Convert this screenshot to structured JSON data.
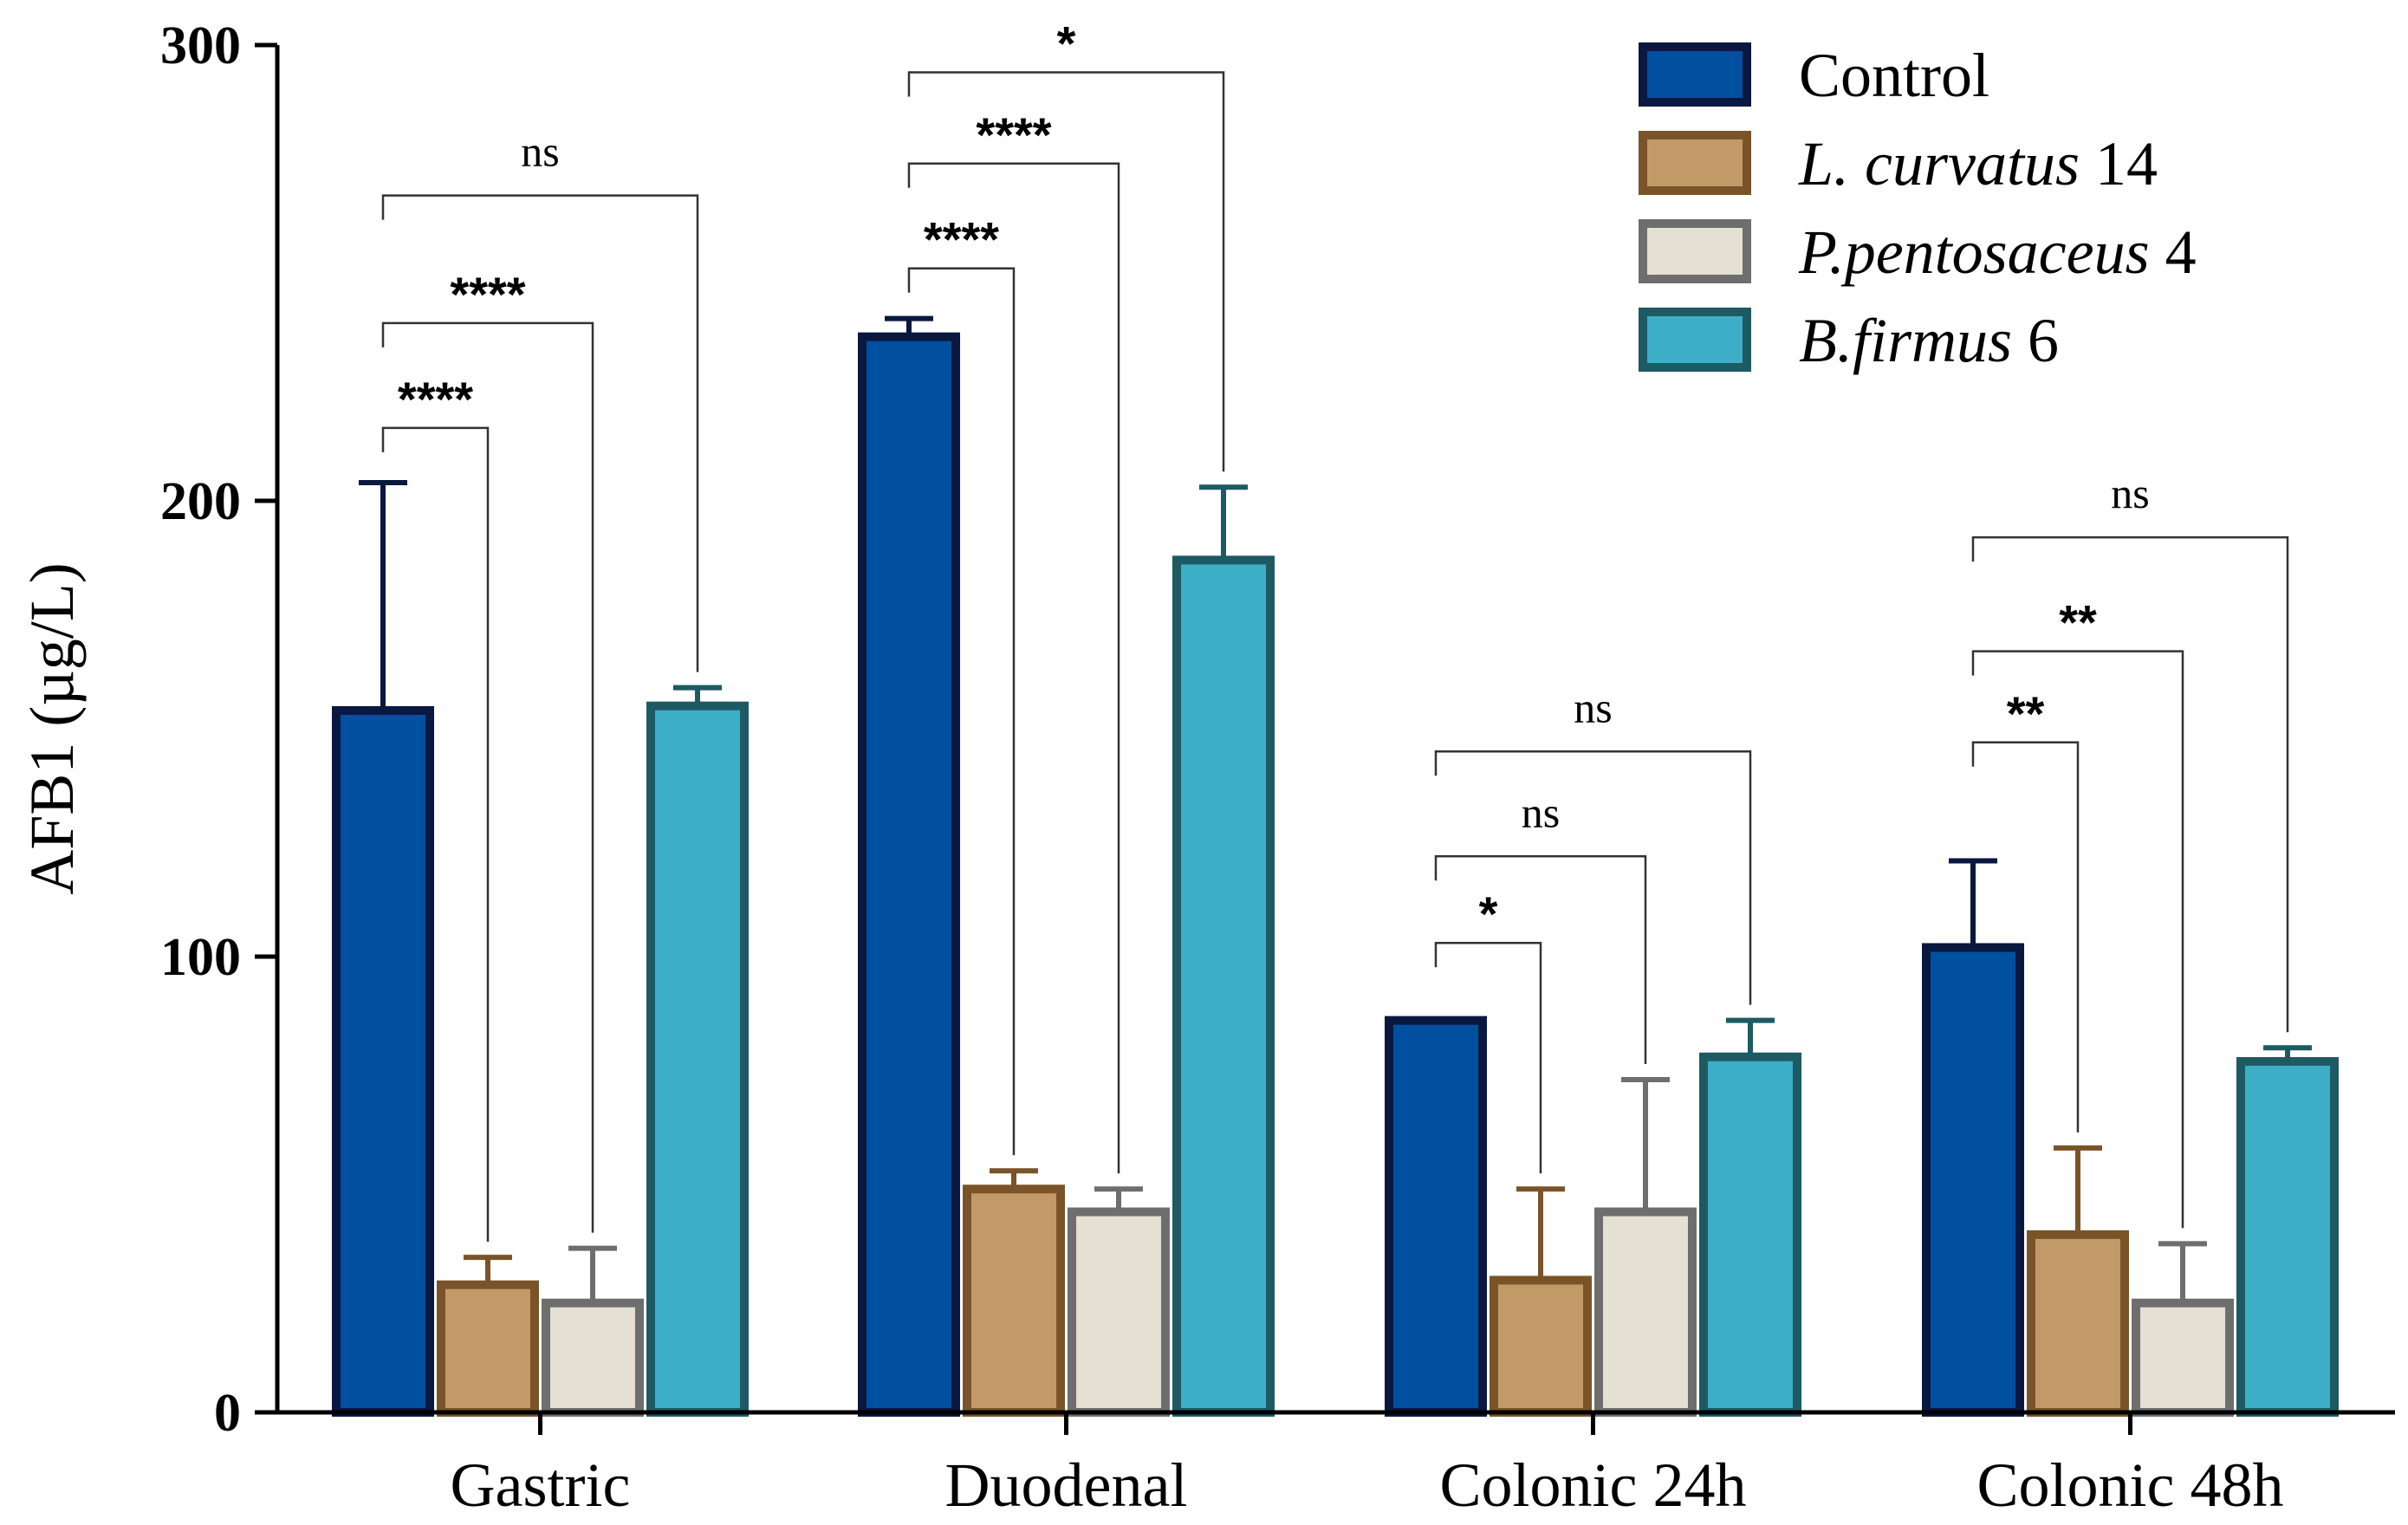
{
  "chart_data": {
    "type": "bar",
    "title": "",
    "xlabel": "",
    "ylabel": "AFB1 (µg/L)",
    "ylim": [
      0,
      300
    ],
    "yticks": [
      0,
      100,
      200,
      300
    ],
    "categories": [
      "Gastric",
      "Duodenal",
      "Colonic 24h",
      "Colonic 48h"
    ],
    "legend_position": "top-right",
    "series": [
      {
        "name": "Control",
        "label_main": "Control",
        "label_suffix": "",
        "italic": false,
        "fill": "#0050A0",
        "stroke": "#0A1840",
        "values": [
          154,
          236,
          86,
          102
        ],
        "errors": [
          50,
          4,
          0,
          19
        ]
      },
      {
        "name": "L. curvatus 14",
        "label_main": "L. curvatus",
        "label_suffix": " 14",
        "italic": true,
        "fill": "#C19A68",
        "stroke": "#7A5428",
        "values": [
          28,
          49,
          29,
          39
        ],
        "errors": [
          6,
          4,
          20,
          19
        ]
      },
      {
        "name": "P.pentosaceus 4",
        "label_main": "P.pentosaceus",
        "label_suffix": " 4",
        "italic": true,
        "fill": "#E5E0D4",
        "stroke": "#6E6E6E",
        "values": [
          24,
          44,
          44,
          24
        ],
        "errors": [
          12,
          5,
          29,
          13
        ]
      },
      {
        "name": "B.firmus 6",
        "label_main": "B.firmus",
        "label_suffix": " 6",
        "italic": true,
        "fill": "#3DAEC8",
        "stroke": "#1E5A64",
        "values": [
          155,
          187,
          78,
          77
        ],
        "errors": [
          4,
          16,
          8,
          3
        ]
      }
    ],
    "comparisons": [
      {
        "group": 0,
        "from": 0,
        "to": 1,
        "label": "****",
        "level": 216
      },
      {
        "group": 0,
        "from": 0,
        "to": 2,
        "label": "****",
        "level": 239
      },
      {
        "group": 0,
        "from": 0,
        "to": 3,
        "label": "ns",
        "level": 267
      },
      {
        "group": 1,
        "from": 0,
        "to": 1,
        "label": "****",
        "level": 251
      },
      {
        "group": 1,
        "from": 0,
        "to": 2,
        "label": "****",
        "level": 274
      },
      {
        "group": 1,
        "from": 0,
        "to": 3,
        "label": "*",
        "level": 294
      },
      {
        "group": 2,
        "from": 0,
        "to": 1,
        "label": "*",
        "level": 103
      },
      {
        "group": 2,
        "from": 0,
        "to": 2,
        "label": "ns",
        "level": 122
      },
      {
        "group": 2,
        "from": 0,
        "to": 3,
        "label": "ns",
        "level": 145
      },
      {
        "group": 3,
        "from": 0,
        "to": 1,
        "label": "**",
        "level": 147
      },
      {
        "group": 3,
        "from": 0,
        "to": 2,
        "label": "**",
        "level": 167
      },
      {
        "group": 3,
        "from": 0,
        "to": 3,
        "label": "ns",
        "level": 192
      }
    ]
  }
}
